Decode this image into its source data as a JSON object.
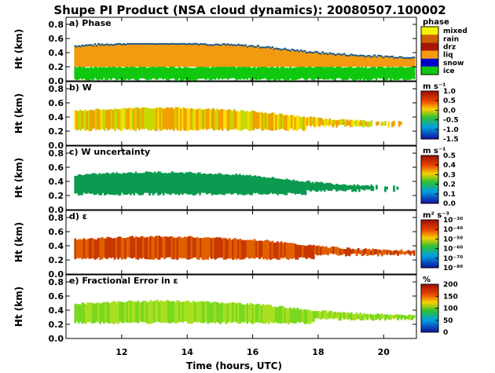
{
  "chart_data": [
    {
      "type": "heatmap",
      "title": "Shupe PI Product (NSA cloud dynamics): 20080507.100002",
      "xlabel": "Time (hours, UTC)",
      "x_ticks": [
        "12",
        "14",
        "16",
        "18",
        "20"
      ],
      "xlim": [
        10.3,
        21.0
      ],
      "panels": [
        {
          "label": "a) Phase",
          "ylabel": "Ht (km)",
          "y_ticks": [
            "0.0",
            "0.2",
            "0.4",
            "0.6",
            "0.8"
          ],
          "ylim": [
            0.0,
            0.9
          ],
          "colorbar": {
            "title": "phase",
            "kind": "categorical",
            "labels": [
              "mixed",
              "rain",
              "drz",
              "liq",
              "snow",
              "ice"
            ],
            "colors": [
              "#f4f400",
              "#d06000",
              "#a81800",
              "#f49a10",
              "#0000c8",
              "#10c810"
            ]
          }
        },
        {
          "label": "b) W",
          "ylabel": "Ht (km)",
          "y_ticks": [
            "0.0",
            "0.2",
            "0.4",
            "0.6",
            "0.8"
          ],
          "ylim": [
            0.0,
            0.9
          ],
          "colorbar": {
            "title": "m s⁻¹",
            "kind": "continuous",
            "labels": [
              "1.0",
              "0.5",
              "0.0",
              "-0.5",
              "-1.0",
              "-1.5"
            ]
          }
        },
        {
          "label": "c) W uncertainty",
          "ylabel": "Ht (km)",
          "y_ticks": [
            "0.0",
            "0.2",
            "0.4",
            "0.6",
            "0.8"
          ],
          "ylim": [
            0.0,
            0.9
          ],
          "colorbar": {
            "title": "m s⁻¹",
            "kind": "continuous",
            "labels": [
              "0.5",
              "0.4",
              "0.3",
              "0.2",
              "0.1",
              "0.0"
            ]
          }
        },
        {
          "label": "d) ε",
          "ylabel": "Ht (km)",
          "y_ticks": [
            "0.0",
            "0.2",
            "0.4",
            "0.6",
            "0.8"
          ],
          "ylim": [
            0.0,
            0.9
          ],
          "colorbar": {
            "title": "m² s⁻³",
            "kind": "continuous",
            "labels": [
              "10⁻³⁰",
              "10⁻⁴⁰",
              "10⁻⁵⁰",
              "10⁻⁶⁰",
              "10⁻⁷⁰",
              "10⁻⁸⁰"
            ]
          }
        },
        {
          "label": "e) Fractional Error in ε",
          "ylabel": "Ht (km)",
          "y_ticks": [
            "0.0",
            "0.2",
            "0.4",
            "0.6",
            "0.8"
          ],
          "ylim": [
            0.0,
            0.9
          ],
          "colorbar": {
            "title": "%",
            "kind": "continuous",
            "labels": [
              "200",
              "150",
              "100",
              "50",
              "0"
            ]
          }
        }
      ]
    }
  ]
}
